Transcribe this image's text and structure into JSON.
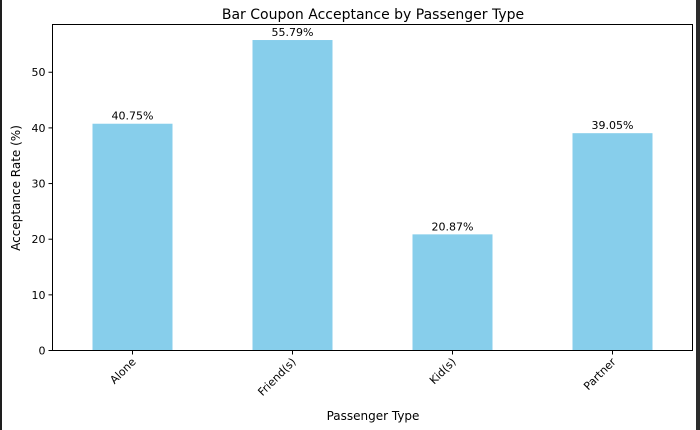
{
  "chart_data": {
    "type": "bar",
    "title": "Bar Coupon Acceptance by Passenger Type",
    "xlabel": "Passenger Type",
    "ylabel": "Acceptance Rate (%)",
    "categories": [
      "Alone",
      "Friend(s)",
      "Kid(s)",
      "Partner"
    ],
    "values": [
      40.75,
      55.79,
      20.87,
      39.05
    ],
    "data_labels": [
      "40.75%",
      "55.79%",
      "20.87%",
      "39.05%"
    ],
    "ylim": [
      0,
      58.58
    ],
    "yticks": [
      0,
      10,
      20,
      30,
      40,
      50
    ],
    "grid": false,
    "bar_color": "#87ceeb"
  }
}
